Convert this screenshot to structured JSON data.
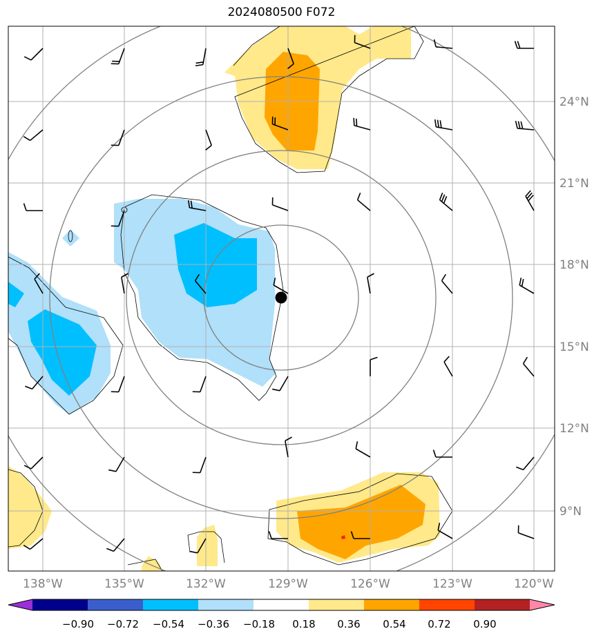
{
  "title": "2024080500 F072",
  "lon_labels": [
    "138°W",
    "135°W",
    "132°W",
    "129°W",
    "126°W",
    "123°W",
    "120°W"
  ],
  "lat_labels": [
    "24°N",
    "21°N",
    "18°N",
    "15°N",
    "12°N",
    "9°N"
  ],
  "colorbar": {
    "tick_labels": [
      "−0.90",
      "−0.72",
      "−0.54",
      "−0.36",
      "−0.18",
      "0.18",
      "0.36",
      "0.54",
      "0.72",
      "0.90"
    ],
    "colors": [
      "#9b30d9",
      "#00008b",
      "#3a5fcd",
      "#00bfff",
      "#b0e0fa",
      "#ffffff",
      "#ffe98a",
      "#ffa500",
      "#ff4500",
      "#b22222",
      "#ff88aa"
    ]
  },
  "map": {
    "land": "none",
    "storm_center": {
      "lon": -129.3,
      "lat": 16.8
    },
    "fill_colors": {
      "light_blue": "#b0e0fa",
      "blue": "#00bfff",
      "light_yellow": "#ffe98a",
      "orange": "#ffa500",
      "red": "#ff2000"
    },
    "range_ring_color": "#808080",
    "grid_color": "#b0b0b0"
  }
}
